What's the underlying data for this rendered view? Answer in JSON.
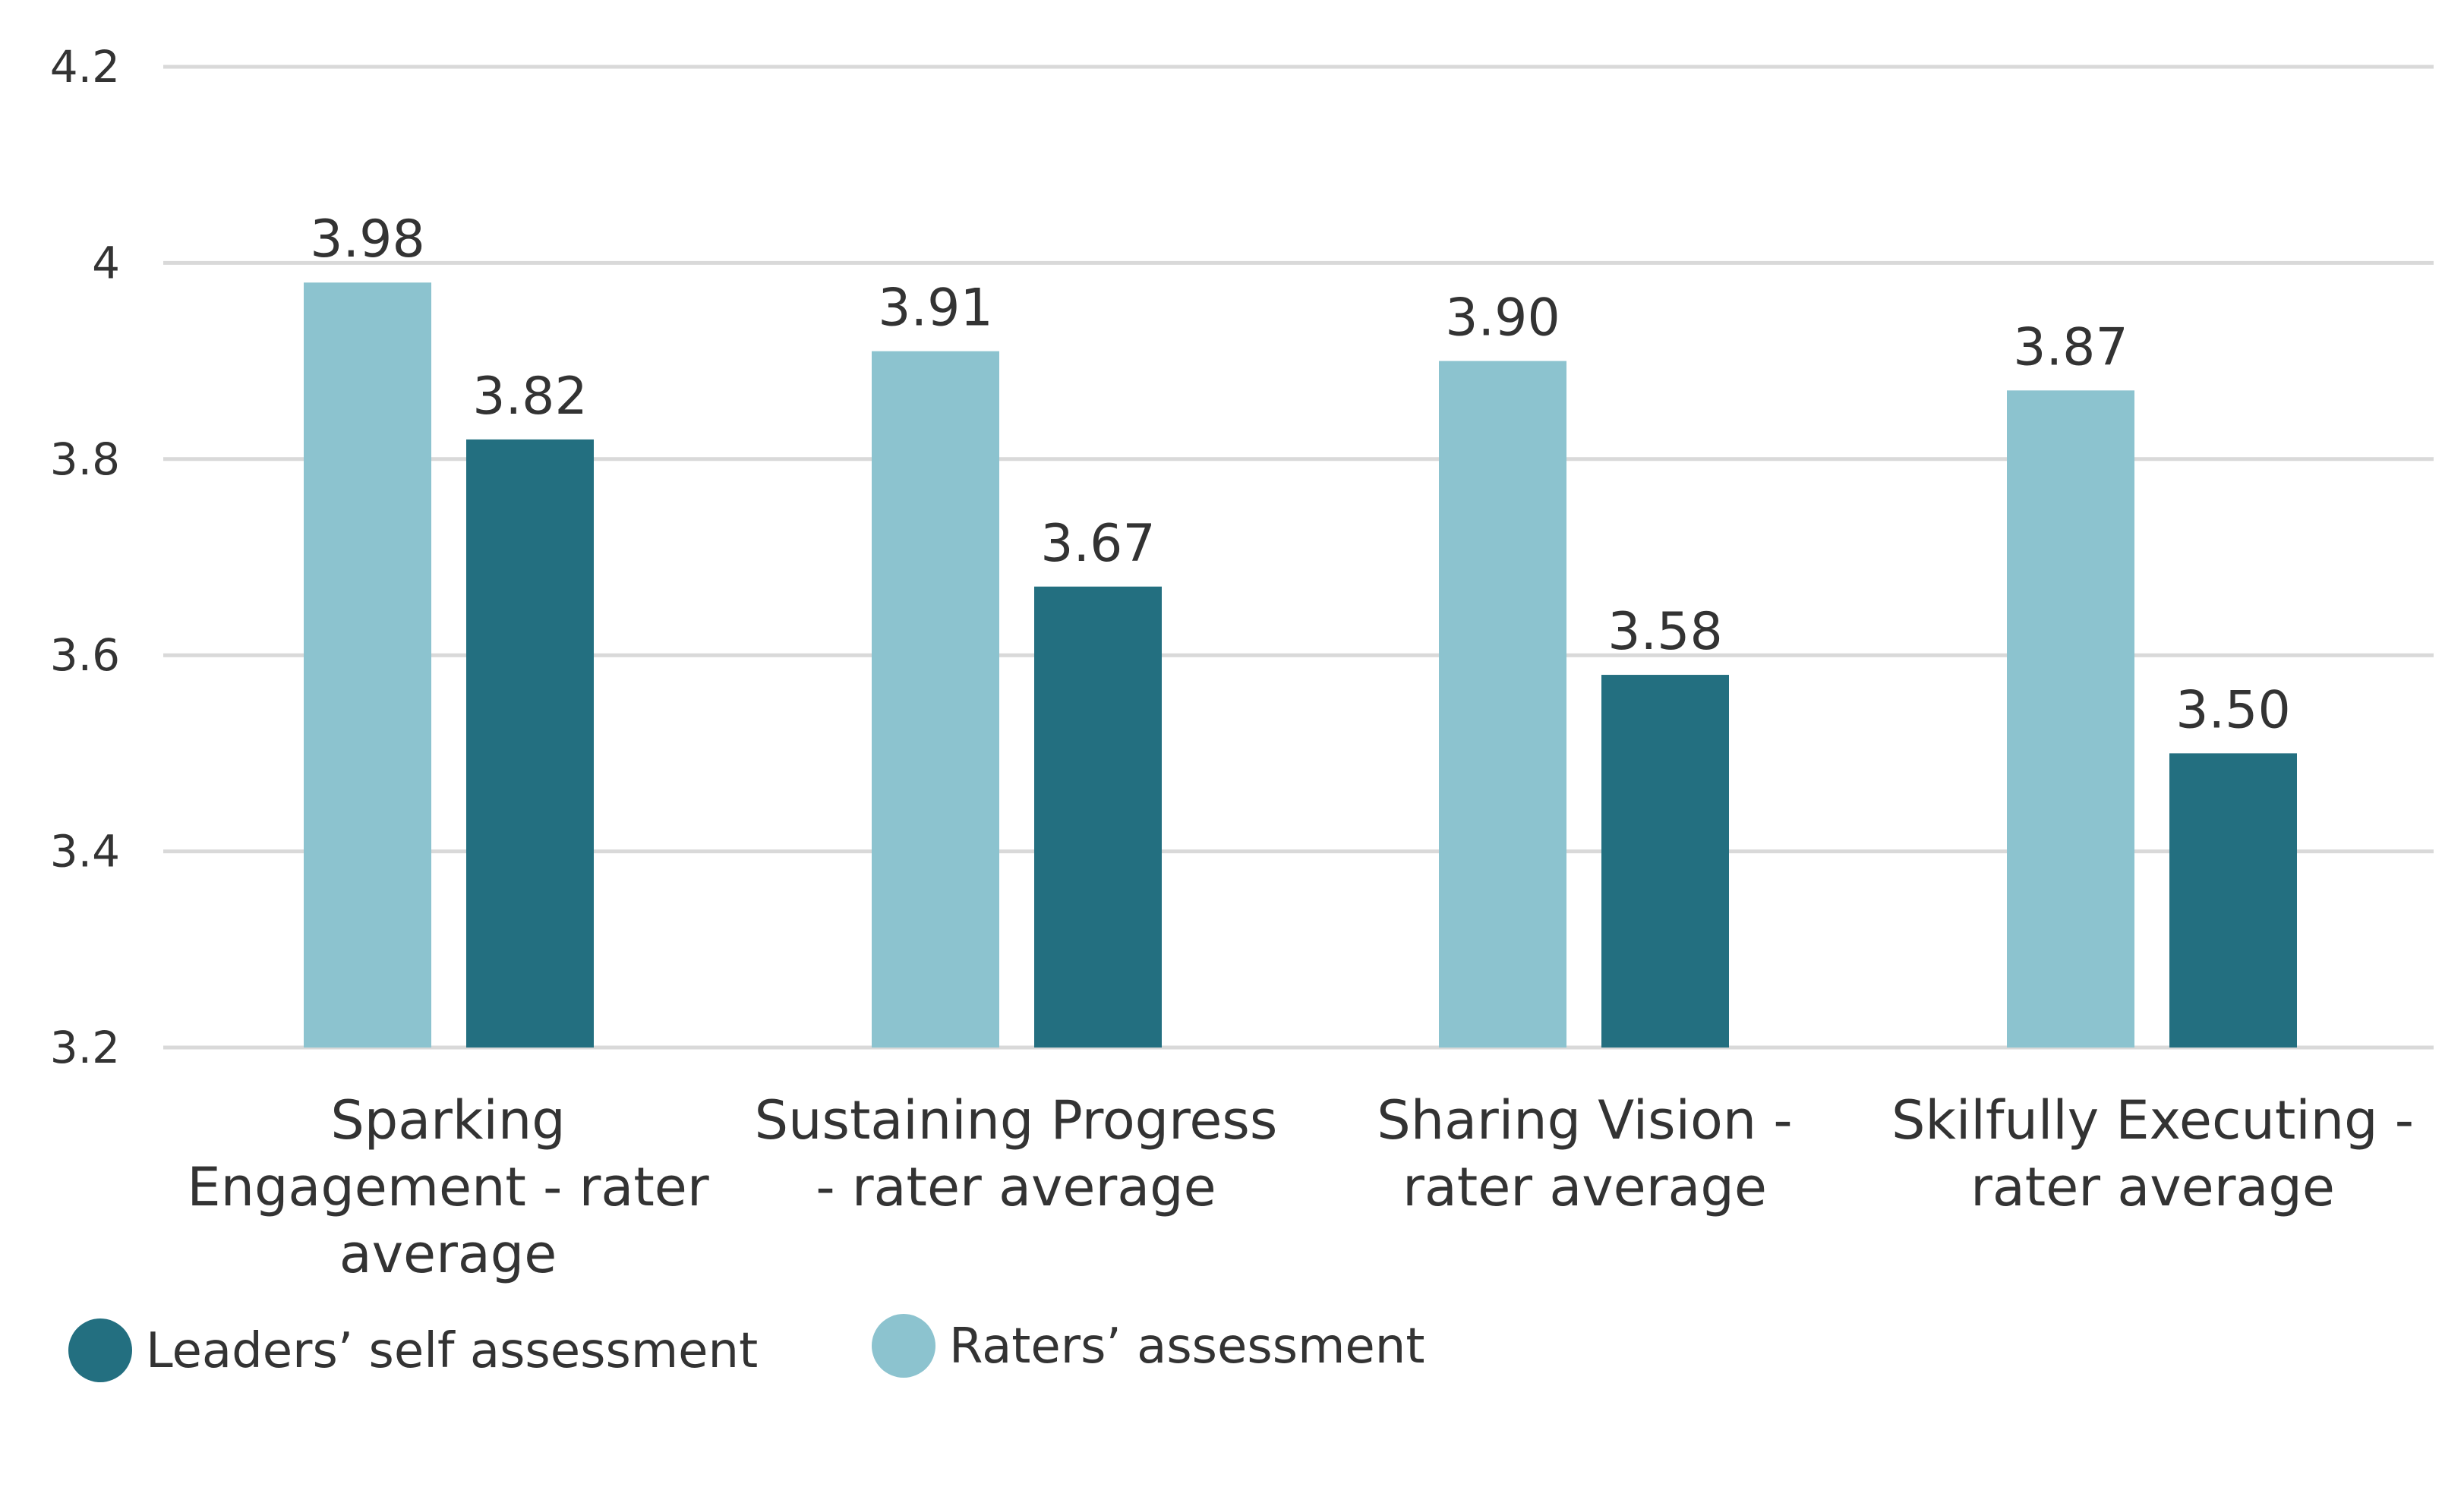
{
  "chart_data": {
    "type": "bar",
    "title": "",
    "xlabel": "",
    "ylabel": "",
    "ylim": [
      3.2,
      4.2
    ],
    "yticks": [
      3.2,
      3.4,
      3.6,
      3.8,
      4,
      4.2
    ],
    "ytick_labels": [
      "3.2",
      "3.4",
      "3.6",
      "3.8",
      "4",
      "4.2"
    ],
    "grid": true,
    "legend_position": "bottom-left",
    "categories": [
      [
        "Sparking",
        "Engagement - rater",
        "average"
      ],
      [
        "Sustaining Progress",
        "- rater average"
      ],
      [
        "Sharing Vision -",
        "rater average"
      ],
      [
        "Skilfully Executing -",
        "rater average"
      ]
    ],
    "series": [
      {
        "name": "Raters’ assessment",
        "color": "#8cc3cf",
        "values": [
          3.98,
          3.91,
          3.9,
          3.87
        ],
        "labels": [
          "3.98",
          "3.91",
          "3.90",
          "3.87"
        ]
      },
      {
        "name": "Leaders’ self assessment",
        "color": "#236f80",
        "values": [
          3.82,
          3.67,
          3.58,
          3.5
        ],
        "labels": [
          "3.82",
          "3.67",
          "3.58",
          "3.50"
        ]
      }
    ],
    "legend_order": [
      1,
      0
    ]
  }
}
